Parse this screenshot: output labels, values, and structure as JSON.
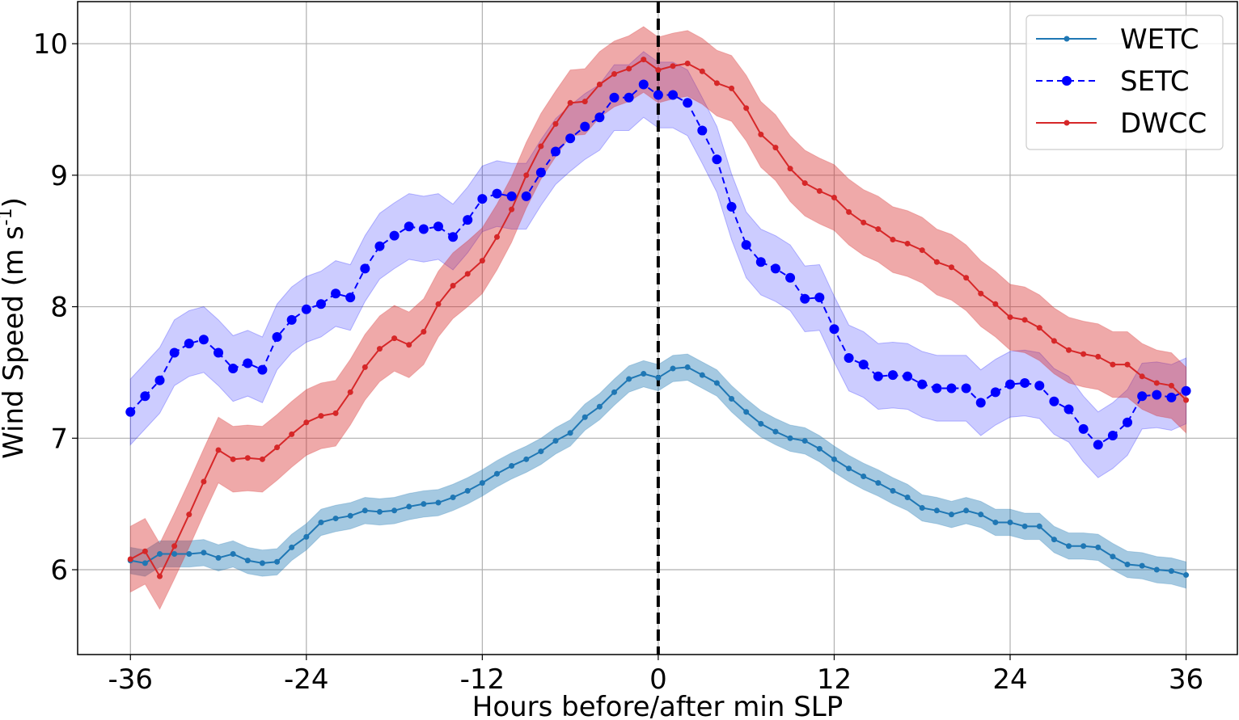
{
  "chart_data": {
    "type": "line",
    "title": "",
    "xlabel": "Hours before/after min SLP",
    "ylabel": "Wind Speed (m s",
    "ylabel_superscript": "-1",
    "ylabel_suffix": ")",
    "xlim": [
      -39.6,
      39.5
    ],
    "ylim": [
      5.355,
      10.32
    ],
    "xticks": [
      -36,
      -24,
      -12,
      0,
      12,
      24,
      36
    ],
    "xtick_labels": [
      "-36",
      "-24",
      "-12",
      "0",
      "12",
      "24",
      "36"
    ],
    "yticks": [
      6,
      7,
      8,
      9,
      10
    ],
    "ytick_labels": [
      "6",
      "7",
      "8",
      "9",
      "10"
    ],
    "grid": true,
    "legend_position": "top-right",
    "vline": {
      "x": 0,
      "style": "dashed",
      "color": "#000000"
    },
    "x": [
      -36,
      -35,
      -34,
      -33,
      -32,
      -31,
      -30,
      -29,
      -28,
      -27,
      -26,
      -25,
      -24,
      -23,
      -22,
      -21,
      -20,
      -19,
      -18,
      -17,
      -16,
      -15,
      -14,
      -13,
      -12,
      -11,
      -10,
      -9,
      -8,
      -7,
      -6,
      -5,
      -4,
      -3,
      -2,
      -1,
      0,
      1,
      2,
      3,
      4,
      5,
      6,
      7,
      8,
      9,
      10,
      11,
      12,
      13,
      14,
      15,
      16,
      17,
      18,
      19,
      20,
      21,
      22,
      23,
      24,
      25,
      26,
      27,
      28,
      29,
      30,
      31,
      32,
      33,
      34,
      35,
      36
    ],
    "series": [
      {
        "name": "WETC",
        "color": "#1f77b4",
        "linestyle": "solid",
        "marker": "small-dot",
        "band_halfwidth": 0.1,
        "values": [
          6.07,
          6.05,
          6.12,
          6.12,
          6.12,
          6.13,
          6.09,
          6.12,
          6.07,
          6.05,
          6.06,
          6.17,
          6.25,
          6.36,
          6.39,
          6.41,
          6.45,
          6.44,
          6.45,
          6.48,
          6.5,
          6.51,
          6.55,
          6.6,
          6.66,
          6.73,
          6.79,
          6.84,
          6.9,
          6.98,
          7.04,
          7.16,
          7.24,
          7.35,
          7.45,
          7.49,
          7.46,
          7.53,
          7.54,
          7.48,
          7.42,
          7.3,
          7.2,
          7.11,
          7.05,
          7.0,
          6.98,
          6.92,
          6.84,
          6.77,
          6.71,
          6.66,
          6.6,
          6.55,
          6.47,
          6.45,
          6.42,
          6.45,
          6.42,
          6.36,
          6.36,
          6.33,
          6.33,
          6.23,
          6.18,
          6.18,
          6.17,
          6.1,
          6.04,
          6.03,
          6.0,
          5.99,
          5.96
        ]
      },
      {
        "name": "SETC",
        "color": "#0000ff",
        "linestyle": "dashed",
        "marker": "large-dot",
        "band_halfwidth": 0.25,
        "values": [
          7.2,
          7.32,
          7.44,
          7.65,
          7.72,
          7.75,
          7.65,
          7.53,
          7.57,
          7.52,
          7.77,
          7.9,
          7.98,
          8.02,
          8.1,
          8.07,
          8.29,
          8.46,
          8.54,
          8.61,
          8.59,
          8.61,
          8.53,
          8.66,
          8.82,
          8.86,
          8.84,
          8.84,
          9.02,
          9.18,
          9.28,
          9.37,
          9.44,
          9.59,
          9.59,
          9.69,
          9.61,
          9.61,
          9.55,
          9.34,
          9.12,
          8.76,
          8.47,
          8.34,
          8.29,
          8.22,
          8.06,
          8.07,
          7.83,
          7.61,
          7.56,
          7.47,
          7.48,
          7.47,
          7.41,
          7.38,
          7.38,
          7.38,
          7.27,
          7.35,
          7.41,
          7.42,
          7.4,
          7.28,
          7.22,
          7.07,
          6.95,
          7.02,
          7.12,
          7.32,
          7.33,
          7.31,
          7.36
        ]
      },
      {
        "name": "DWCC",
        "color": "#d62728",
        "linestyle": "solid",
        "marker": "small-dot",
        "band_halfwidth": 0.25,
        "values": [
          6.08,
          6.14,
          5.95,
          6.18,
          6.42,
          6.67,
          6.91,
          6.84,
          6.85,
          6.84,
          6.93,
          7.03,
          7.12,
          7.17,
          7.19,
          7.35,
          7.54,
          7.68,
          7.76,
          7.71,
          7.81,
          8.02,
          8.16,
          8.25,
          8.35,
          8.53,
          8.74,
          9.0,
          9.22,
          9.39,
          9.55,
          9.56,
          9.69,
          9.77,
          9.81,
          9.88,
          9.8,
          9.83,
          9.85,
          9.79,
          9.7,
          9.66,
          9.51,
          9.31,
          9.21,
          9.05,
          8.94,
          8.88,
          8.83,
          8.72,
          8.64,
          8.59,
          8.51,
          8.48,
          8.43,
          8.34,
          8.3,
          8.22,
          8.1,
          8.02,
          7.92,
          7.9,
          7.84,
          7.74,
          7.67,
          7.64,
          7.62,
          7.56,
          7.56,
          7.47,
          7.42,
          7.4,
          7.29
        ]
      }
    ]
  }
}
